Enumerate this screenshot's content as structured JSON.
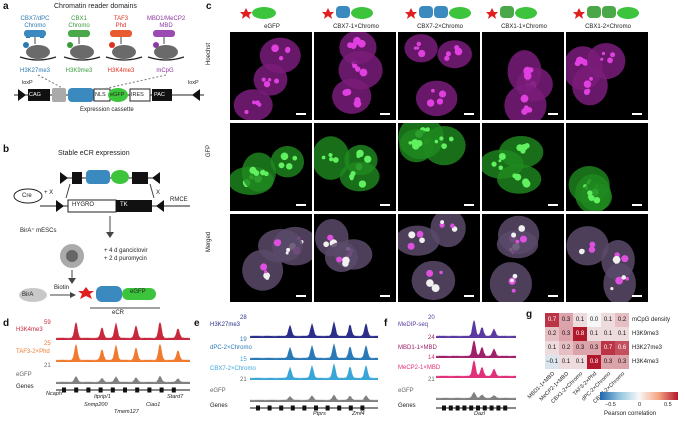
{
  "panels": {
    "a": {
      "label": "a",
      "title": "Chromatin reader domains",
      "readers": [
        {
          "name": "CBX7/dPC",
          "domain": "Chromo",
          "mark": "H3K27me3",
          "color": "#2a7ab0"
        },
        {
          "name": "CBX1",
          "domain": "Chromo",
          "mark": "H3K9me3",
          "color": "#3a9a3a"
        },
        {
          "name": "TAF3",
          "domain": "Phd",
          "mark": "H3K4me3",
          "color": "#e03020"
        },
        {
          "name": "MBD1/MeCP2",
          "domain": "MBD",
          "mark": "mCpG",
          "color": "#8a3aa0"
        }
      ],
      "cassette": {
        "parts": [
          "CAG",
          "NLS",
          "eGFP",
          "IRES",
          "PAC"
        ],
        "loxp": "loxP",
        "caption": "Expression cassette"
      }
    },
    "b": {
      "label": "b",
      "title": "Stable eCR expression",
      "cre": "Cre",
      "x1": "+ X",
      "x2": "X",
      "hygro": "HYGRO",
      "tk": "TK",
      "rmce": "RMCE",
      "cells": "BirA⁺ mESCs",
      "treat1": "+ 4 d ganciclovir",
      "treat2": "+ 2 d puromycin",
      "bira": "BirA",
      "biotin": "Biotin",
      "egfp": "eGFP",
      "ecr": "eCR"
    },
    "c": {
      "label": "c",
      "columns": [
        "eGFP",
        "CBX7-1×Chromo",
        "CBX7-2×Chromo",
        "CBX1-1×Chromo",
        "CBX1-2×Chromo"
      ],
      "rows": [
        "Hoechst",
        "GFP",
        "Merged"
      ]
    },
    "d": {
      "label": "d",
      "tracks": [
        {
          "name": "H3K4me3",
          "max": "59",
          "color": "#c8283c"
        },
        {
          "name": "TAF3-2×Phd",
          "max": "25",
          "color": "#f07a30"
        },
        {
          "name": "eGFP",
          "max": "21",
          "color": "#808080"
        }
      ],
      "genes_label": "Genes",
      "genes": [
        "Ncaph",
        "Itprip/1",
        "Snmp200",
        "Tmem127",
        "Ciao1",
        "Stard7"
      ]
    },
    "e": {
      "label": "e",
      "tracks": [
        {
          "name": "H3K27me3",
          "max": "28",
          "color": "#2c2f8a"
        },
        {
          "name": "dPC-2×Chromo",
          "max": "19",
          "color": "#2a7ab8"
        },
        {
          "name": "CBX7-2×Chromo",
          "max": "15",
          "color": "#3aa6d8"
        },
        {
          "name": "eGFP",
          "max": "21",
          "color": "#808080"
        }
      ],
      "genes_label": "Genes",
      "genes": [
        "Ptprs",
        "Zmf4"
      ]
    },
    "f": {
      "label": "f",
      "tracks": [
        {
          "name": "MeDIP-seq",
          "max": "20",
          "color": "#5a3aa0"
        },
        {
          "name": "MBD1-1×MBD",
          "max": "24",
          "color": "#a0206a"
        },
        {
          "name": "MeCP2-1×MBD",
          "max": "14",
          "color": "#e0307a"
        },
        {
          "name": "eGFP",
          "max": "21",
          "color": "#808080"
        }
      ],
      "genes_label": "Genes",
      "genes": [
        "Dazl"
      ]
    },
    "g": {
      "label": "g",
      "row_labels": [
        "mCpG density",
        "H3K9me3",
        "H3K27me3",
        "H3K4me3"
      ],
      "col_labels": [
        "MBD1-1×MBD",
        "MeCP2-1×MBD",
        "CBX1-2×Chromo",
        "TAF3-2×Phd",
        "dPC-2×Chromo",
        "CBX7-2×Chromo"
      ],
      "values": [
        [
          "0.7",
          "0.3",
          "0.1",
          "0.0",
          "0.1",
          "0.2"
        ],
        [
          "0.2",
          "0.3",
          "0.8",
          "0.1",
          "0.1",
          "0.1"
        ],
        [
          "0.1",
          "0.2",
          "0.3",
          "0.3",
          "0.7",
          "0.6"
        ],
        [
          "−0.1",
          "0.1",
          "0.1",
          "0.8",
          "0.3",
          "0.3"
        ]
      ],
      "colorbar_ticks": [
        "−0.5",
        "0",
        "0.5"
      ],
      "colorbar_label": "Pearson correlation"
    }
  }
}
